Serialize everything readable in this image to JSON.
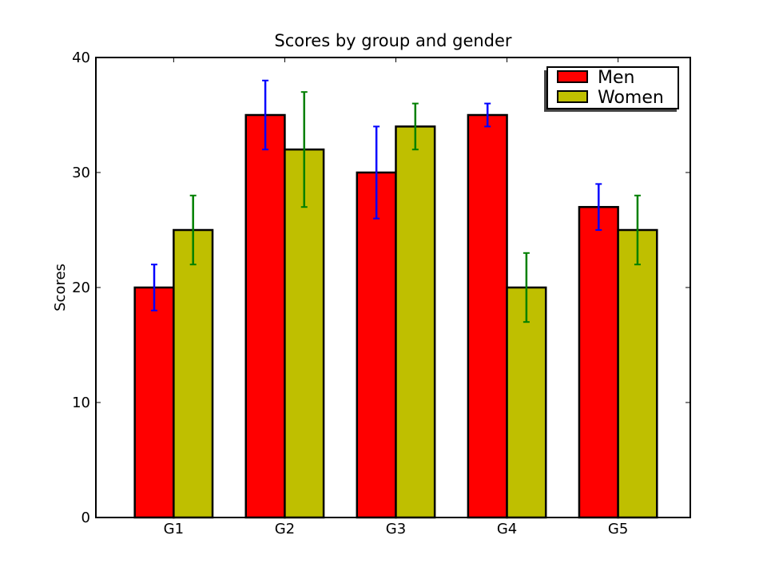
{
  "chart_data": {
    "type": "bar",
    "title": "Scores by group and gender",
    "xlabel": "",
    "ylabel": "Scores",
    "categories": [
      "G1",
      "G2",
      "G3",
      "G4",
      "G5"
    ],
    "ylim": [
      0,
      40
    ],
    "yticks": [
      0,
      10,
      20,
      30,
      40
    ],
    "grid": false,
    "legend_position": "top-right",
    "series": [
      {
        "name": "Men",
        "values": [
          20,
          35,
          30,
          35,
          27
        ],
        "errors": [
          2,
          3,
          4,
          1,
          2
        ],
        "color": "#ff0000",
        "error_color": "#0000ff"
      },
      {
        "name": "Women",
        "values": [
          25,
          32,
          34,
          20,
          25
        ],
        "errors": [
          3,
          5,
          2,
          3,
          3
        ],
        "color": "#bfbf00",
        "error_color": "#008000"
      }
    ]
  }
}
